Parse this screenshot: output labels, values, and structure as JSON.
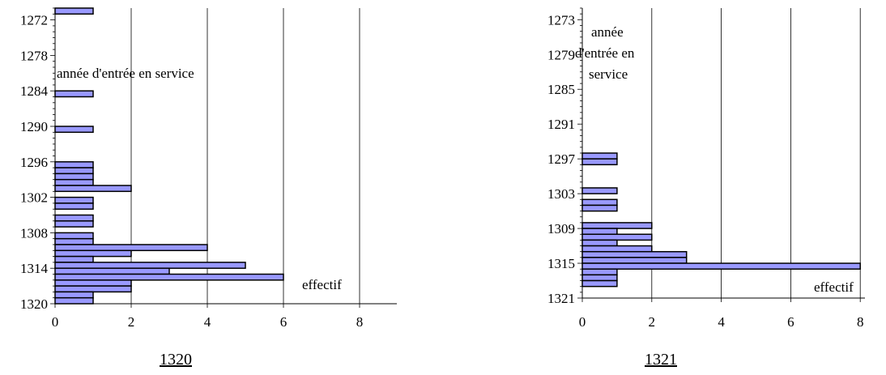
{
  "colors": {
    "bar_fill": "#9999ff",
    "bar_stroke": "#000000",
    "grid": "#000000"
  },
  "chart_data": [
    {
      "type": "bar",
      "orientation": "horizontal",
      "caption": "1320",
      "ylabel": "année d'entrée en service",
      "xlabel": "effectif",
      "x_ticks": [
        "0",
        "2",
        "4",
        "6",
        "8"
      ],
      "y_tick_labels": [
        "1272",
        "1278",
        "1284",
        "1290",
        "1296",
        "1302",
        "1308",
        "1314",
        "1320"
      ],
      "xlim": [
        0,
        9
      ],
      "ylim": [
        1320,
        1270
      ],
      "grid": "vertical",
      "categories": [
        1270,
        1284,
        1290,
        1296,
        1297,
        1298,
        1299,
        1300,
        1302,
        1303,
        1305,
        1306,
        1308,
        1309,
        1310,
        1311,
        1312,
        1313,
        1314,
        1315,
        1316,
        1317,
        1318,
        1319
      ],
      "values": [
        1,
        1,
        1,
        1,
        1,
        1,
        1,
        2,
        1,
        1,
        1,
        1,
        1,
        1,
        4,
        2,
        1,
        5,
        3,
        6,
        2,
        2,
        1,
        1
      ]
    },
    {
      "type": "bar",
      "orientation": "horizontal",
      "caption": "1321",
      "ylabel": "année d'entrée en service",
      "xlabel": "effectif",
      "x_ticks": [
        "0",
        "2",
        "4",
        "6",
        "8"
      ],
      "y_tick_labels": [
        "1273",
        "1279",
        "1285",
        "1291",
        "1297",
        "1303",
        "1309",
        "1315",
        "1321"
      ],
      "xlim": [
        0,
        8
      ],
      "ylim": [
        1321,
        1271
      ],
      "grid": "vertical",
      "categories": [
        1296,
        1297,
        1302,
        1304,
        1305,
        1308,
        1309,
        1310,
        1311,
        1312,
        1313,
        1314,
        1315,
        1316,
        1317,
        1318
      ],
      "values": [
        1,
        1,
        1,
        1,
        1,
        2,
        1,
        2,
        1,
        2,
        3,
        3,
        8,
        1,
        1,
        1
      ]
    }
  ]
}
